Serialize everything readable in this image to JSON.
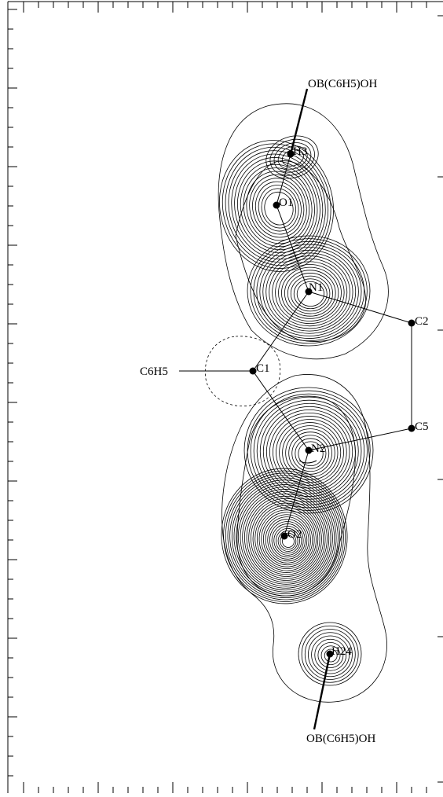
{
  "diagram": {
    "atoms": [
      {
        "id": "H3",
        "label": "H3"
      },
      {
        "id": "O1",
        "label": "O1"
      },
      {
        "id": "N1",
        "label": "N1"
      },
      {
        "id": "C2",
        "label": "C2"
      },
      {
        "id": "C1",
        "label": "C1"
      },
      {
        "id": "C5",
        "label": "C5"
      },
      {
        "id": "N2",
        "label": "N2"
      },
      {
        "id": "O2",
        "label": "O2"
      },
      {
        "id": "H24",
        "label": "H24"
      }
    ],
    "external_labels": {
      "top": "OB(C6H5)OH",
      "left": "C6H5",
      "bottom": "OB(C6H5)OH"
    }
  }
}
